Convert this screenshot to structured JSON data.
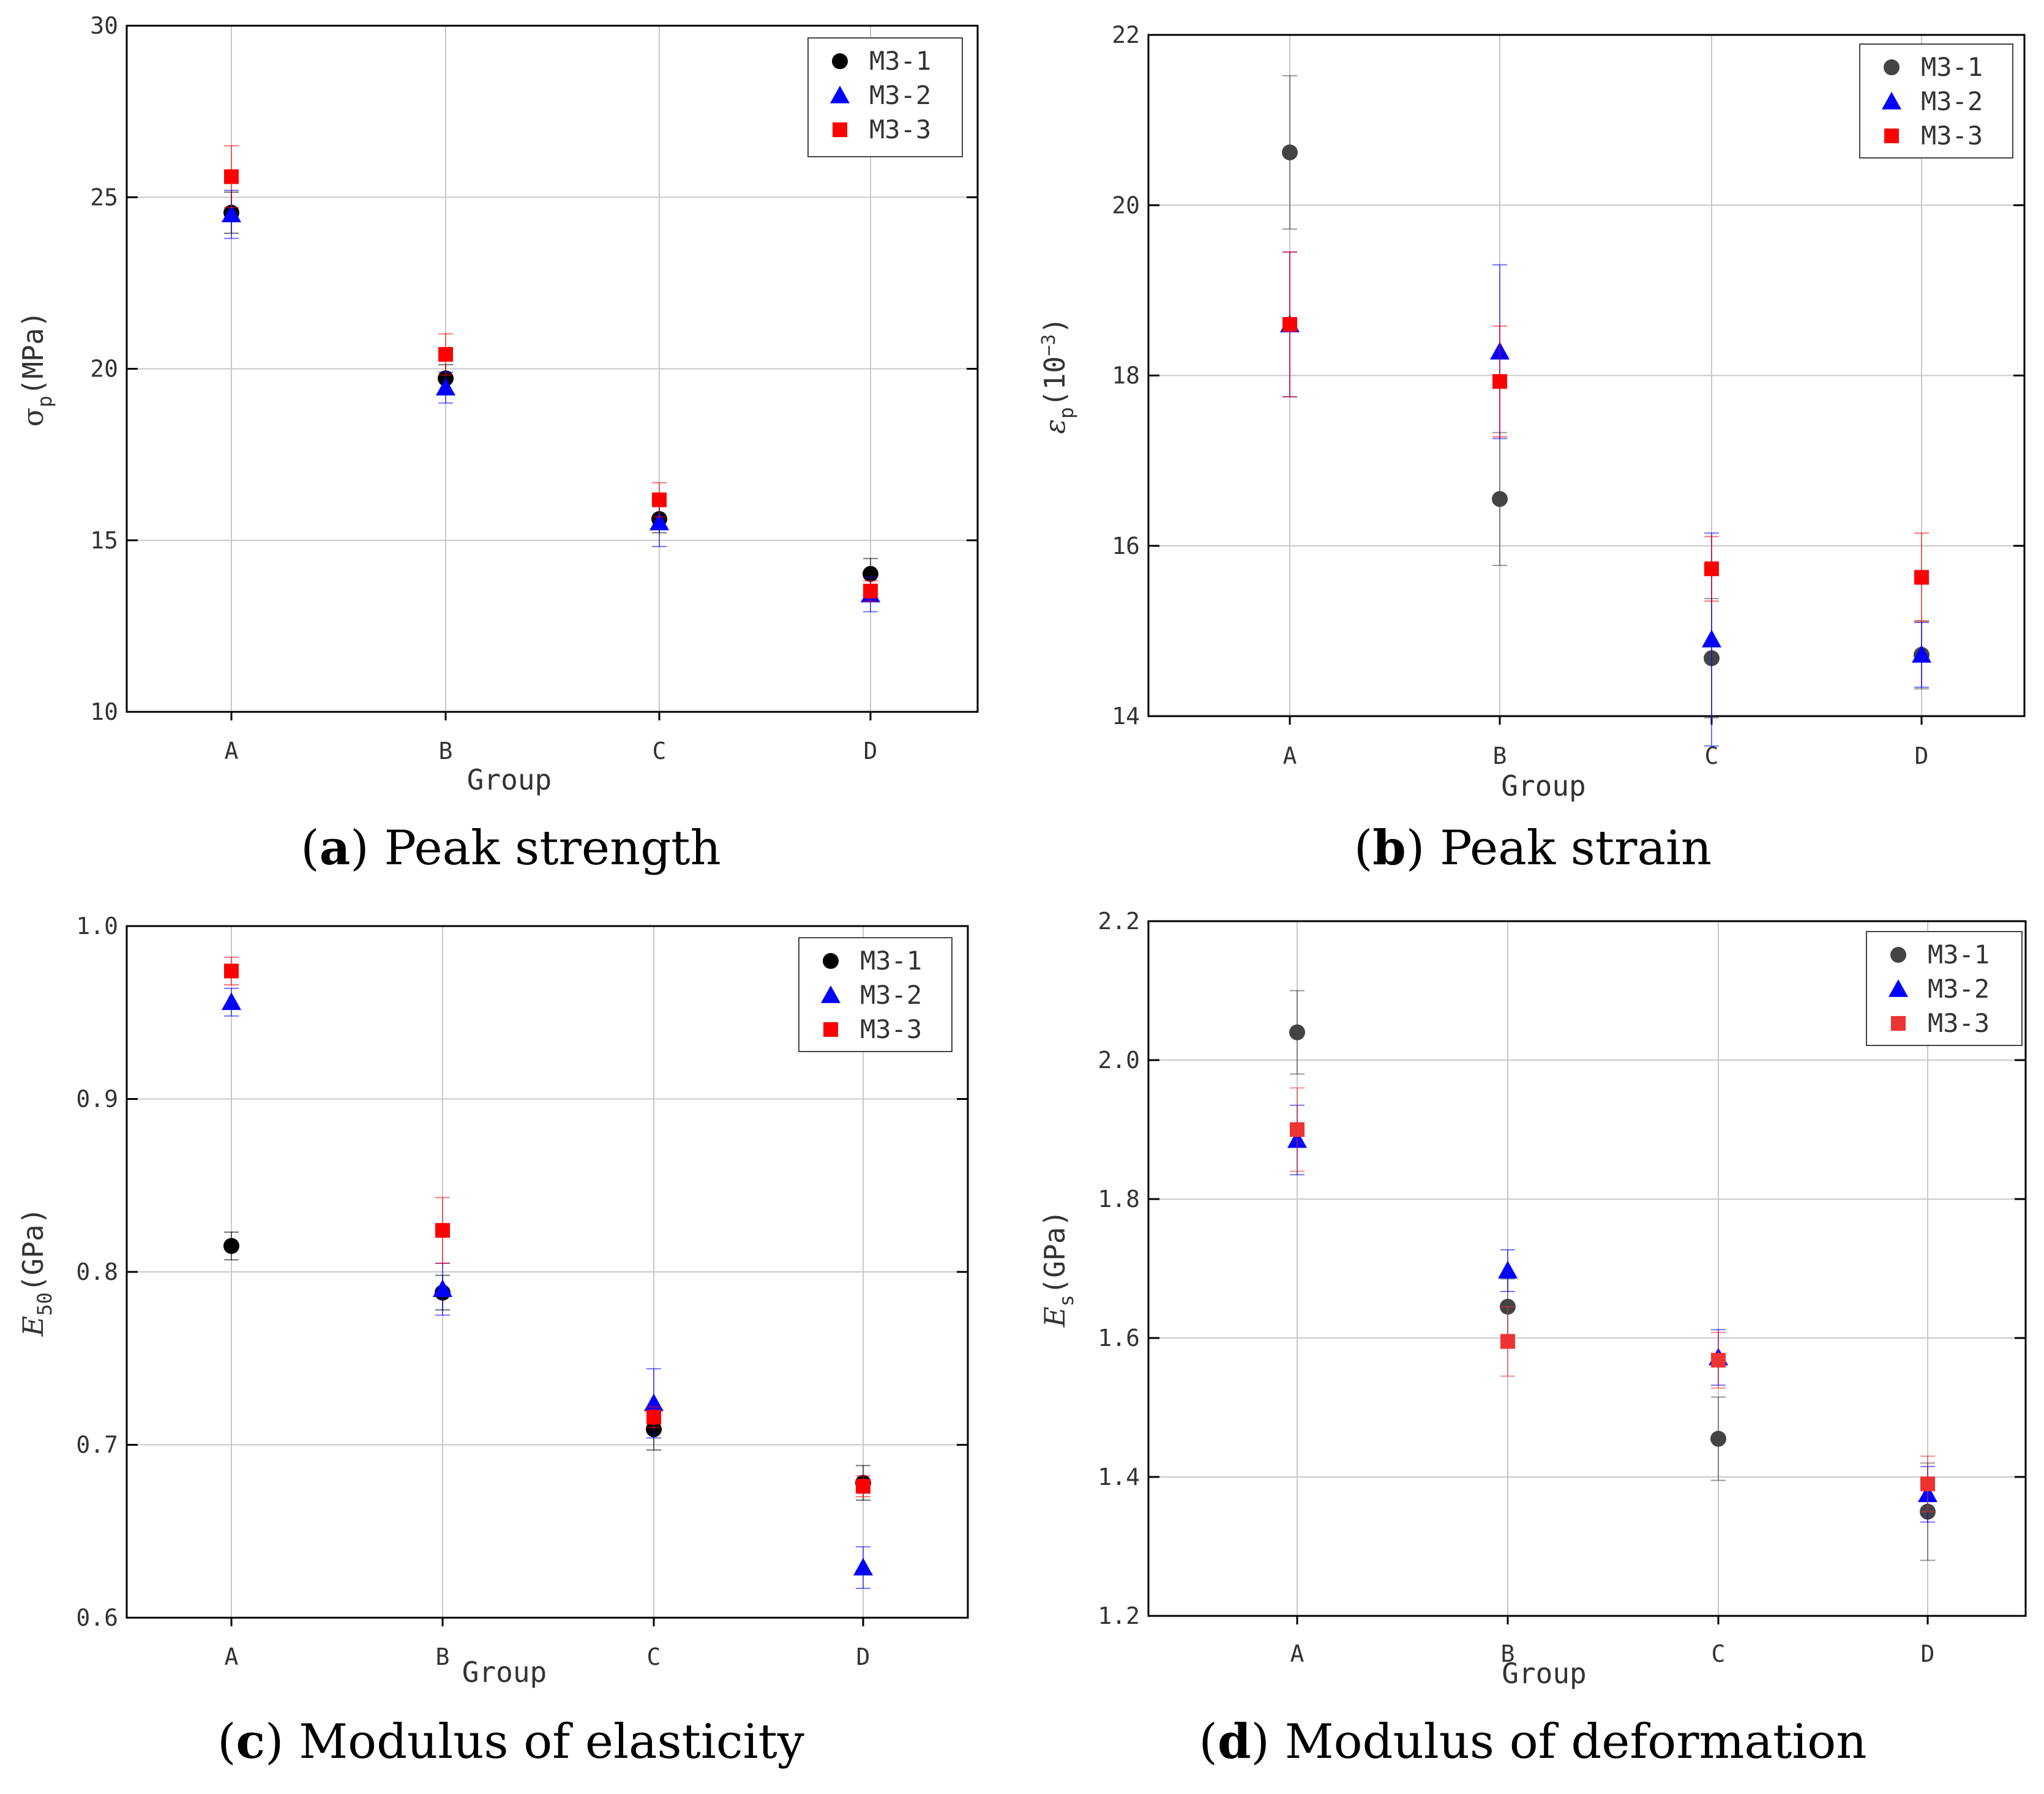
{
  "chart_data": [
    {
      "id": "a",
      "type": "scatter",
      "caption_letter": "a",
      "caption_text": "Peak strength",
      "xlabel": "Group",
      "ylabel_main": "σ",
      "ylabel_sub": "p",
      "ylabel_unit": "(MPa)",
      "categories": [
        "A",
        "B",
        "C",
        "D"
      ],
      "ylim": [
        10,
        30
      ],
      "yticks": [
        10,
        15,
        20,
        25,
        30
      ],
      "ytick_labels": [
        "10",
        "15",
        "20",
        "25",
        "30"
      ],
      "grid": true,
      "legend_position": "top-right",
      "series": [
        {
          "name": "M3-1",
          "marker": "circle",
          "color": "#000000",
          "values": [
            24.55,
            19.72,
            15.62,
            14.02
          ],
          "err": [
            0.6,
            0.4,
            0.4,
            0.45
          ]
        },
        {
          "name": "M3-2",
          "marker": "triangle",
          "color": "#0000ff",
          "values": [
            24.5,
            19.45,
            15.52,
            13.42
          ],
          "err": [
            0.7,
            0.45,
            0.7,
            0.5
          ]
        },
        {
          "name": "M3-3",
          "marker": "square",
          "color": "#ff0000",
          "values": [
            25.6,
            20.42,
            16.18,
            13.52
          ],
          "err": [
            0.9,
            0.6,
            0.5,
            0.3
          ]
        }
      ]
    },
    {
      "id": "b",
      "type": "scatter",
      "caption_letter": "b",
      "caption_text": "Peak strain",
      "xlabel": "Group",
      "ylabel_main": "ε",
      "ylabel_sub": "p",
      "ylabel_unit": "(10",
      "ylabel_sup": "−3",
      "ylabel_close": ")",
      "categories": [
        "A",
        "B",
        "C",
        "D"
      ],
      "ylim": [
        14,
        22
      ],
      "yticks": [
        14,
        16,
        18,
        20,
        22
      ],
      "ytick_labels": [
        "14",
        "16",
        "18",
        "20",
        "22"
      ],
      "grid": true,
      "legend_position": "top-right",
      "series": [
        {
          "name": "M3-1",
          "marker": "circle",
          "color": "#444444",
          "values": [
            20.62,
            16.55,
            14.68,
            14.72
          ],
          "err": [
            0.9,
            0.78,
            0.7,
            0.4
          ]
        },
        {
          "name": "M3-2",
          "marker": "triangle",
          "color": "#0000ff",
          "values": [
            18.6,
            18.28,
            14.9,
            14.72
          ],
          "err": [
            0.85,
            1.02,
            1.25,
            0.38
          ]
        },
        {
          "name": "M3-3",
          "marker": "square",
          "color": "#ff0000",
          "values": [
            18.6,
            17.93,
            15.73,
            15.63
          ],
          "err": [
            0.85,
            0.65,
            0.38,
            0.52
          ]
        }
      ]
    },
    {
      "id": "c",
      "type": "scatter",
      "caption_letter": "c",
      "caption_text": "Modulus of elasticity",
      "xlabel": "Group",
      "ylabel_main": "E",
      "ylabel_sub": "50",
      "ylabel_unit": "(GPa)",
      "categories": [
        "A",
        "B",
        "C",
        "D"
      ],
      "ylim": [
        0.6,
        1.0
      ],
      "yticks": [
        0.6,
        0.7,
        0.8,
        0.9,
        1.0
      ],
      "ytick_labels": [
        "0.6",
        "0.7",
        "0.8",
        "0.9",
        "1.0"
      ],
      "grid": true,
      "legend_position": "top-right",
      "series": [
        {
          "name": "M3-1",
          "marker": "circle",
          "color": "#000000",
          "values": [
            0.815,
            0.788,
            0.709,
            0.678
          ],
          "err": [
            0.008,
            0.01,
            0.012,
            0.01
          ]
        },
        {
          "name": "M3-2",
          "marker": "triangle",
          "color": "#0000ff",
          "values": [
            0.956,
            0.79,
            0.724,
            0.629
          ],
          "err": [
            0.008,
            0.015,
            0.02,
            0.012
          ]
        },
        {
          "name": "M3-3",
          "marker": "square",
          "color": "#ff0000",
          "values": [
            0.974,
            0.824,
            0.716,
            0.676
          ],
          "err": [
            0.008,
            0.019,
            0.006,
            0.006
          ]
        }
      ]
    },
    {
      "id": "d",
      "type": "scatter",
      "caption_letter": "d",
      "caption_text": "Modulus of deformation",
      "xlabel": "Group",
      "ylabel_main": "E",
      "ylabel_sub": "s",
      "ylabel_unit": "(GPa)",
      "categories": [
        "A",
        "B",
        "C",
        "D"
      ],
      "ylim": [
        1.2,
        2.2
      ],
      "yticks": [
        1.2,
        1.4,
        1.6,
        1.8,
        2.0,
        2.2
      ],
      "ytick_labels": [
        "1.2",
        "1.4",
        "1.6",
        "1.8",
        "2.0",
        "2.2"
      ],
      "grid": true,
      "legend_position": "top-right",
      "series": [
        {
          "name": "M3-1",
          "marker": "circle",
          "color": "#444444",
          "values": [
            2.04,
            1.645,
            1.455,
            1.35
          ],
          "err": [
            0.06,
            0.04,
            0.06,
            0.07
          ]
        },
        {
          "name": "M3-2",
          "marker": "triangle",
          "color": "#0000ff",
          "values": [
            1.885,
            1.697,
            1.572,
            1.375
          ],
          "err": [
            0.05,
            0.03,
            0.04,
            0.04
          ]
        },
        {
          "name": "M3-3",
          "marker": "square",
          "color": "#ee3333",
          "values": [
            1.9,
            1.595,
            1.568,
            1.39
          ],
          "err": [
            0.06,
            0.05,
            0.04,
            0.04
          ]
        }
      ]
    }
  ]
}
